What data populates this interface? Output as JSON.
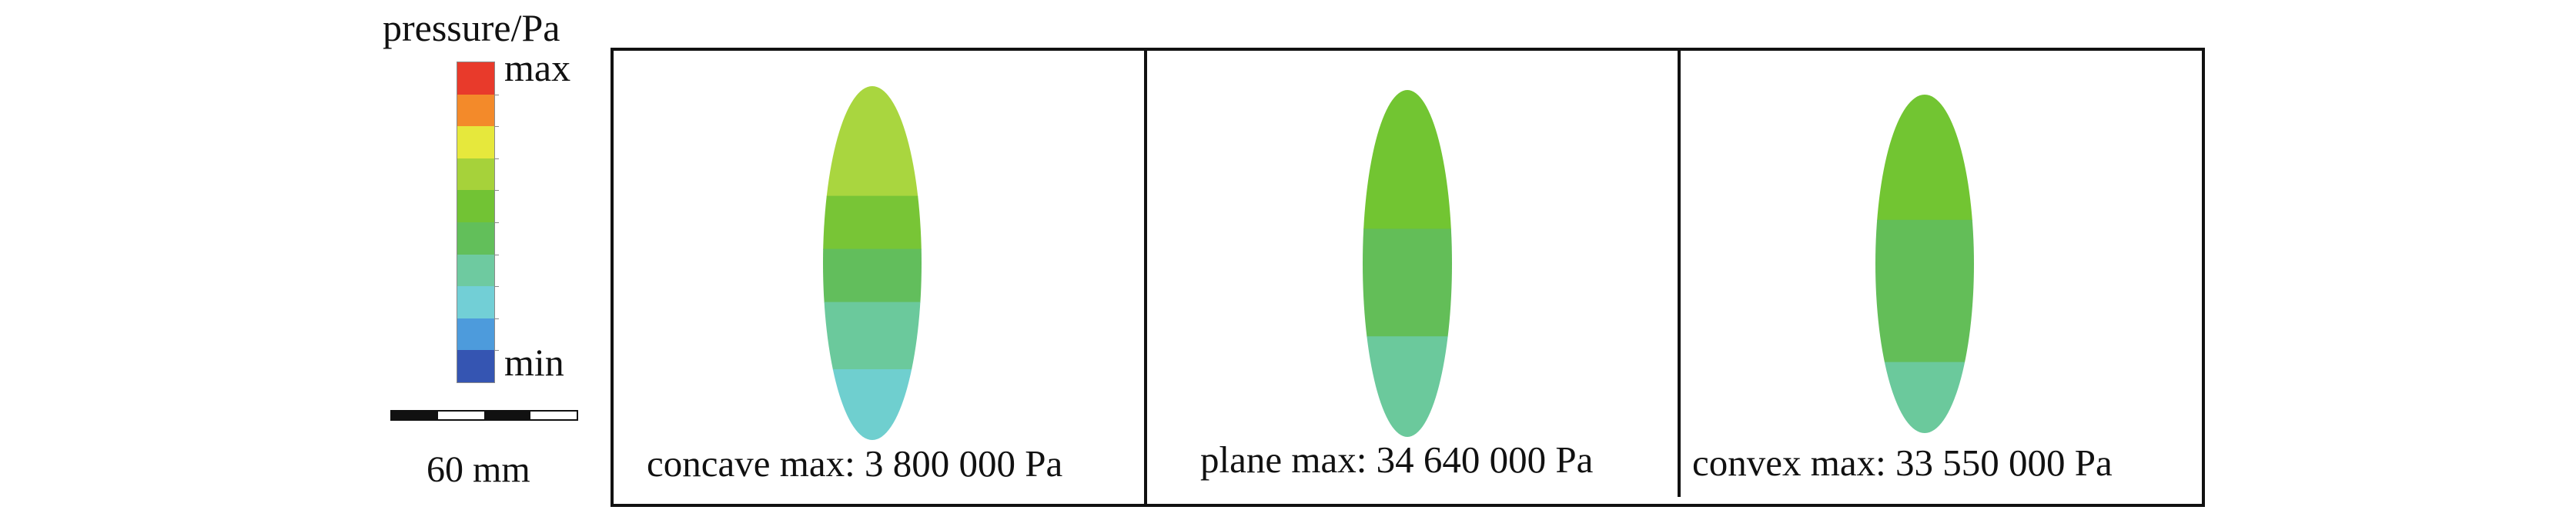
{
  "legend": {
    "title": "pressure/Pa",
    "max_label": "max",
    "min_label": "min",
    "colors": [
      "#e83a2b",
      "#f38a2a",
      "#e6e83c",
      "#a6d23a",
      "#72c334",
      "#62bf5a",
      "#6ecaa0",
      "#72cfd6",
      "#4d9bdc",
      "#3555b2"
    ]
  },
  "scale": {
    "label": "60 mm"
  },
  "panels": [
    {
      "label": "concave max: 3 800 000 Pa",
      "bands": [
        {
          "color": "#a9d63f",
          "from": 0.0,
          "to": 0.31
        },
        {
          "color": "#78c536",
          "from": 0.31,
          "to": 0.46
        },
        {
          "color": "#62be5c",
          "from": 0.46,
          "to": 0.61
        },
        {
          "color": "#6bc99c",
          "from": 0.61,
          "to": 0.8
        },
        {
          "color": "#6fcfcf",
          "from": 0.8,
          "to": 1.0
        }
      ]
    },
    {
      "label": "plane max: 34 640 000 Pa",
      "bands": [
        {
          "color": "#72c532",
          "from": 0.0,
          "to": 0.4
        },
        {
          "color": "#63be58",
          "from": 0.4,
          "to": 0.71
        },
        {
          "color": "#6bc99c",
          "from": 0.71,
          "to": 1.0
        }
      ]
    },
    {
      "label": "convex max: 33 550 000 Pa",
      "bands": [
        {
          "color": "#72c532",
          "from": 0.0,
          "to": 0.37
        },
        {
          "color": "#63be58",
          "from": 0.37,
          "to": 0.79
        },
        {
          "color": "#6bc99c",
          "from": 0.79,
          "to": 1.0
        }
      ]
    }
  ]
}
